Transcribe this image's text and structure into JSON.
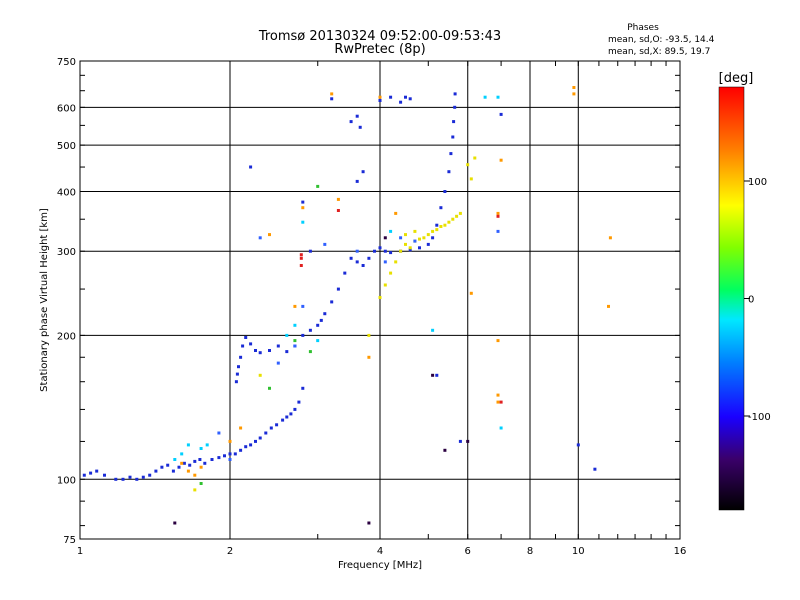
{
  "chart_data": {
    "type": "scatter",
    "title": "Tromsø 20130324 09:52:00-09:53:43",
    "subtitle": "RwPretec (8p)",
    "xlabel": "Frequency [MHz]",
    "ylabel": "Stationary phase Virtual Height [km]",
    "x_scale": "log",
    "y_scale": "log",
    "xlim": [
      1,
      16
    ],
    "ylim": [
      75,
      750
    ],
    "x_ticks": [
      1,
      2,
      4,
      6,
      8,
      10,
      16
    ],
    "x_tick_labels": [
      "1",
      "2",
      "4",
      "6",
      "8",
      "10",
      "16"
    ],
    "y_ticks": [
      75,
      100,
      200,
      300,
      400,
      500,
      600,
      750
    ],
    "y_tick_labels": [
      "75",
      "100",
      "200",
      "300",
      "400",
      "500",
      "600",
      "750"
    ],
    "grid": true,
    "stats": {
      "heading": "Phases",
      "line_o": "mean, sd,O: -93.5, 14.4",
      "line_x": "mean, sd,X:  89.5, 19.7"
    },
    "colorbar": {
      "title": "[deg]",
      "range": [
        -180,
        180
      ],
      "tick_values": [
        100,
        0,
        -100
      ],
      "tick_labels": [
        "100",
        "0",
        "-100"
      ]
    },
    "series": [
      {
        "color": "#1a2bd6",
        "phase": -100,
        "points": [
          [
            1.02,
            102
          ],
          [
            1.05,
            103
          ],
          [
            1.08,
            104
          ],
          [
            1.12,
            102
          ],
          [
            1.18,
            100
          ],
          [
            1.22,
            100
          ],
          [
            1.26,
            101
          ],
          [
            1.3,
            100
          ],
          [
            1.34,
            101
          ],
          [
            1.38,
            102
          ],
          [
            1.42,
            104
          ],
          [
            1.46,
            106
          ],
          [
            1.5,
            107
          ],
          [
            1.54,
            104
          ],
          [
            1.58,
            106
          ],
          [
            1.62,
            108
          ],
          [
            1.66,
            107
          ],
          [
            1.7,
            109
          ],
          [
            1.74,
            110
          ],
          [
            1.78,
            108
          ],
          [
            1.84,
            110
          ],
          [
            1.9,
            111
          ],
          [
            1.95,
            112
          ],
          [
            2.0,
            113
          ],
          [
            2.05,
            113
          ],
          [
            2.1,
            115
          ],
          [
            2.15,
            117
          ],
          [
            2.2,
            118
          ],
          [
            2.25,
            120
          ],
          [
            2.3,
            122
          ],
          [
            2.36,
            125
          ],
          [
            2.42,
            128
          ],
          [
            2.48,
            130
          ],
          [
            2.55,
            133
          ],
          [
            2.6,
            135
          ],
          [
            2.65,
            137
          ],
          [
            2.7,
            140
          ],
          [
            2.75,
            145
          ],
          [
            2.8,
            155
          ],
          [
            2.06,
            160
          ],
          [
            2.07,
            166
          ],
          [
            2.08,
            172
          ],
          [
            2.1,
            180
          ],
          [
            2.12,
            190
          ],
          [
            2.15,
            198
          ],
          [
            2.2,
            192
          ],
          [
            2.25,
            186
          ],
          [
            2.3,
            184
          ],
          [
            2.4,
            186
          ],
          [
            2.5,
            190
          ],
          [
            2.6,
            185
          ],
          [
            2.7,
            190
          ],
          [
            2.8,
            200
          ],
          [
            2.9,
            205
          ],
          [
            3.0,
            210
          ],
          [
            3.05,
            215
          ],
          [
            3.1,
            222
          ],
          [
            3.2,
            235
          ],
          [
            3.3,
            250
          ],
          [
            3.4,
            270
          ],
          [
            3.5,
            290
          ],
          [
            3.6,
            285
          ],
          [
            3.7,
            280
          ],
          [
            3.8,
            290
          ],
          [
            3.9,
            300
          ],
          [
            4.0,
            305
          ],
          [
            4.1,
            300
          ],
          [
            4.2,
            298
          ],
          [
            4.4,
            300
          ],
          [
            4.6,
            302
          ],
          [
            4.8,
            305
          ],
          [
            5.0,
            310
          ],
          [
            5.1,
            320
          ],
          [
            5.2,
            340
          ],
          [
            5.3,
            370
          ],
          [
            5.4,
            400
          ],
          [
            5.5,
            440
          ],
          [
            5.55,
            480
          ],
          [
            5.6,
            520
          ],
          [
            5.62,
            560
          ],
          [
            5.65,
            600
          ],
          [
            5.66,
            640
          ],
          [
            3.5,
            560
          ],
          [
            3.6,
            575
          ],
          [
            3.65,
            545
          ],
          [
            4.0,
            620
          ],
          [
            4.2,
            630
          ],
          [
            4.4,
            615
          ],
          [
            4.6,
            625
          ],
          [
            3.6,
            420
          ],
          [
            3.7,
            440
          ],
          [
            2.8,
            380
          ],
          [
            2.9,
            300
          ],
          [
            2.2,
            450
          ],
          [
            5.8,
            120
          ],
          [
            5.2,
            165
          ],
          [
            7.0,
            580
          ],
          [
            10.0,
            118
          ],
          [
            10.8,
            105
          ],
          [
            3.2,
            625
          ],
          [
            4.5,
            630
          ]
        ]
      },
      {
        "color": "#e8e000",
        "phase": 100,
        "points": [
          [
            4.0,
            240
          ],
          [
            4.1,
            255
          ],
          [
            4.2,
            270
          ],
          [
            4.3,
            285
          ],
          [
            4.4,
            300
          ],
          [
            4.5,
            310
          ],
          [
            4.6,
            305
          ],
          [
            4.7,
            315
          ],
          [
            4.8,
            318
          ],
          [
            4.9,
            320
          ],
          [
            5.0,
            325
          ],
          [
            5.1,
            330
          ],
          [
            5.2,
            333
          ],
          [
            5.3,
            338
          ],
          [
            5.4,
            340
          ],
          [
            5.5,
            345
          ],
          [
            5.6,
            350
          ],
          [
            5.7,
            355
          ],
          [
            5.8,
            360
          ],
          [
            6.0,
            455
          ],
          [
            6.1,
            425
          ],
          [
            6.2,
            470
          ],
          [
            4.5,
            325
          ],
          [
            4.7,
            330
          ],
          [
            3.8,
            200
          ],
          [
            1.7,
            95
          ],
          [
            2.3,
            165
          ]
        ]
      },
      {
        "color": "#ff9900",
        "phase": 120,
        "points": [
          [
            1.6,
            108
          ],
          [
            1.65,
            104
          ],
          [
            1.7,
            102
          ],
          [
            1.75,
            106
          ],
          [
            2.0,
            120
          ],
          [
            2.1,
            128
          ],
          [
            3.2,
            640
          ],
          [
            3.8,
            180
          ],
          [
            4.3,
            360
          ],
          [
            6.9,
            360
          ],
          [
            6.9,
            150
          ],
          [
            6.9,
            145
          ],
          [
            6.9,
            195
          ],
          [
            7.0,
            465
          ],
          [
            6.1,
            245
          ],
          [
            9.8,
            660
          ],
          [
            11.5,
            230
          ],
          [
            11.6,
            320
          ],
          [
            2.8,
            370
          ],
          [
            3.3,
            385
          ],
          [
            4.0,
            630
          ],
          [
            2.4,
            325
          ],
          [
            2.7,
            230
          ],
          [
            9.8,
            640
          ]
        ]
      },
      {
        "color": "#00d0ff",
        "phase": -40,
        "points": [
          [
            1.55,
            110
          ],
          [
            1.6,
            113
          ],
          [
            1.65,
            118
          ],
          [
            1.75,
            116
          ],
          [
            2.6,
            200
          ],
          [
            2.7,
            210
          ],
          [
            3.0,
            195
          ],
          [
            5.1,
            205
          ],
          [
            7.0,
            128
          ],
          [
            6.5,
            630
          ],
          [
            6.9,
            630
          ],
          [
            4.2,
            330
          ],
          [
            2.8,
            345
          ],
          [
            1.8,
            118
          ]
        ]
      },
      {
        "color": "#3060ff",
        "phase": -80,
        "points": [
          [
            2.3,
            320
          ],
          [
            2.7,
            190
          ],
          [
            2.8,
            230
          ],
          [
            3.1,
            310
          ],
          [
            3.6,
            300
          ],
          [
            4.1,
            285
          ],
          [
            4.4,
            320
          ],
          [
            4.7,
            315
          ],
          [
            6.9,
            330
          ],
          [
            2.0,
            110
          ],
          [
            1.9,
            125
          ],
          [
            2.5,
            175
          ]
        ]
      },
      {
        "color": "#30c030",
        "phase": 40,
        "points": [
          [
            3.0,
            410
          ],
          [
            2.7,
            195
          ],
          [
            2.9,
            185
          ],
          [
            2.4,
            155
          ],
          [
            1.75,
            98
          ]
        ]
      },
      {
        "color": "#e02020",
        "phase": 170,
        "points": [
          [
            2.78,
            280
          ],
          [
            2.78,
            295
          ],
          [
            2.78,
            290
          ],
          [
            3.3,
            365
          ],
          [
            6.9,
            355
          ],
          [
            7.0,
            145
          ]
        ]
      },
      {
        "color": "#2a0040",
        "phase": -160,
        "points": [
          [
            1.55,
            81
          ],
          [
            3.8,
            81
          ],
          [
            5.1,
            165
          ],
          [
            5.4,
            115
          ],
          [
            4.1,
            320
          ],
          [
            6.0,
            120
          ]
        ]
      }
    ]
  }
}
